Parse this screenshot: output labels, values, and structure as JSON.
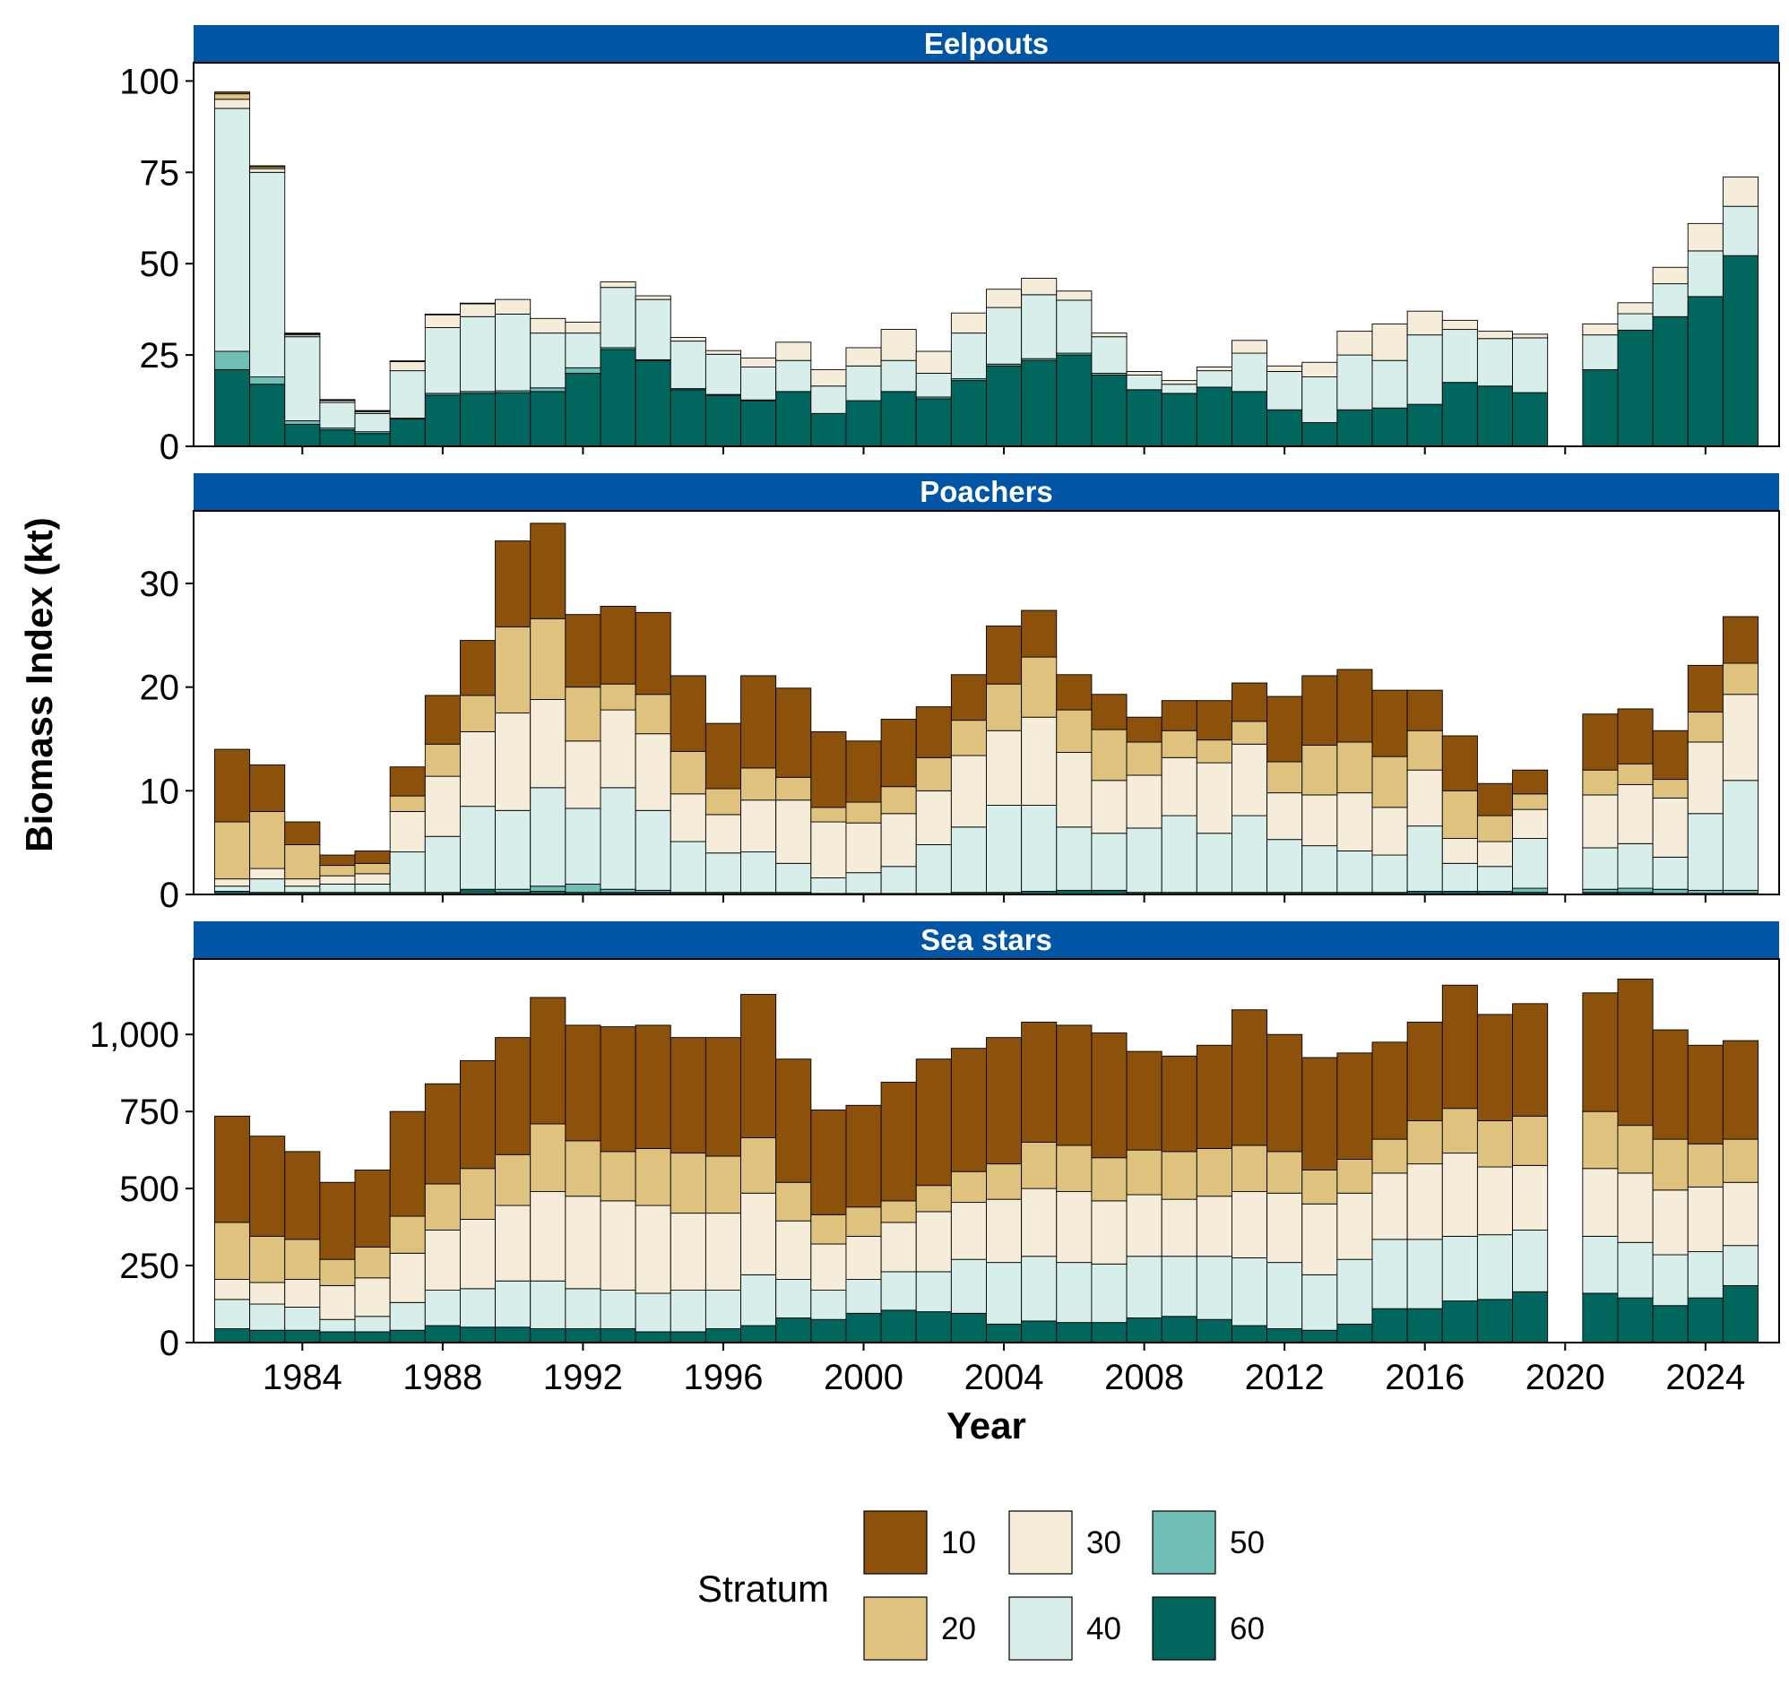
{
  "chart_data": {
    "type": "bar",
    "stacked": true,
    "xlabel": "Year",
    "ylabel": "Biomass Index (kt)",
    "x_ticks": [
      1984,
      1988,
      1992,
      1996,
      2000,
      2004,
      2008,
      2012,
      2016,
      2020,
      2024
    ],
    "years": [
      1982,
      1983,
      1984,
      1985,
      1986,
      1987,
      1988,
      1989,
      1990,
      1991,
      1992,
      1993,
      1994,
      1995,
      1996,
      1997,
      1998,
      1999,
      2000,
      2001,
      2002,
      2003,
      2004,
      2005,
      2006,
      2007,
      2008,
      2009,
      2010,
      2011,
      2012,
      2013,
      2014,
      2015,
      2016,
      2017,
      2018,
      2019,
      2020,
      2021,
      2022,
      2023,
      2024,
      2025
    ],
    "strata": [
      "10",
      "20",
      "30",
      "40",
      "50",
      "60"
    ],
    "colors": {
      "10": "#8c510a",
      "20": "#dfc27d",
      "30": "#f5ecd9",
      "40": "#d8eeeb",
      "50": "#6fbfb7",
      "60": "#01665e"
    },
    "legend": {
      "title": "Stratum",
      "position": "bottom"
    },
    "strip_color": "#0055a5",
    "panels": [
      {
        "name": "Eelpouts",
        "ylim": [
          0,
          105
        ],
        "yticks": [
          0,
          25,
          50,
          75,
          100
        ],
        "ytick_labels": [
          "0",
          "25",
          "50",
          "75",
          "100"
        ],
        "stacks": [
          [
            0.5,
            1.5,
            2.5,
            66.5,
            5,
            21
          ],
          [
            0.3,
            0.5,
            1,
            56,
            2,
            17
          ],
          [
            0.2,
            0.3,
            0.5,
            23,
            1,
            6
          ],
          [
            0.1,
            0.2,
            0.5,
            7,
            0.5,
            4.5
          ],
          [
            0.1,
            0.2,
            0.5,
            5,
            0.5,
            3.5
          ],
          [
            0,
            0.2,
            2.5,
            13,
            0.2,
            7.5
          ],
          [
            0,
            0.2,
            3.5,
            18,
            0.5,
            14
          ],
          [
            0,
            0.2,
            3.5,
            20.5,
            0.5,
            14.5
          ],
          [
            0,
            0,
            4,
            21,
            0.5,
            14.7
          ],
          [
            0,
            0,
            4,
            15,
            1,
            15
          ],
          [
            0,
            0,
            3,
            9.5,
            1.5,
            20
          ],
          [
            0,
            0,
            1.5,
            16.5,
            0.5,
            26.5
          ],
          [
            0,
            0,
            1,
            16.5,
            0.2,
            23.5
          ],
          [
            0,
            0,
            1,
            13,
            0.3,
            15.5
          ],
          [
            0,
            0,
            1,
            11,
            0.2,
            14
          ],
          [
            0,
            0,
            2.5,
            9,
            0.2,
            12.5
          ],
          [
            0,
            0,
            5,
            8.5,
            0,
            15
          ],
          [
            0,
            0,
            4.5,
            7.5,
            0,
            9
          ],
          [
            0,
            0,
            5,
            9.5,
            0,
            12.5
          ],
          [
            0,
            0,
            8.5,
            8.5,
            0,
            15
          ],
          [
            0,
            0,
            6,
            6.5,
            0.5,
            13
          ],
          [
            0,
            0,
            5.5,
            12.5,
            0.5,
            18
          ],
          [
            0,
            0,
            5,
            15.5,
            0.5,
            22
          ],
          [
            0,
            0,
            4.5,
            17.5,
            0.5,
            23.5
          ],
          [
            0,
            0,
            2.5,
            14.5,
            0.5,
            25
          ],
          [
            0,
            0,
            1,
            10,
            0.5,
            19.5
          ],
          [
            0,
            0,
            1,
            4,
            0,
            15.5
          ],
          [
            0,
            0,
            1,
            2.5,
            0,
            14.5
          ],
          [
            0,
            0,
            1,
            4.5,
            0,
            16.2
          ],
          [
            0,
            0,
            3.5,
            10.5,
            0,
            15
          ],
          [
            0,
            0,
            1.5,
            10.5,
            0,
            10
          ],
          [
            0,
            0,
            4,
            12.5,
            0,
            6.5
          ],
          [
            0,
            0,
            6.5,
            15,
            0,
            10
          ],
          [
            0,
            0,
            10,
            13,
            0,
            10.5
          ],
          [
            0,
            0,
            6.5,
            19,
            0,
            11.5
          ],
          [
            0,
            0,
            2.5,
            14.5,
            0,
            17.5
          ],
          [
            0,
            0,
            2,
            13,
            0,
            16.5
          ],
          [
            0,
            0,
            1,
            15,
            0,
            14.7
          ],
          [
            0,
            0,
            0,
            0,
            0,
            0
          ],
          [
            0,
            0,
            3,
            9.5,
            0,
            21
          ],
          [
            0,
            0,
            3,
            4.5,
            0,
            31.8
          ],
          [
            0,
            0,
            4.5,
            9,
            0,
            35.5
          ],
          [
            0,
            0,
            7.5,
            12.5,
            0,
            41
          ],
          [
            0,
            0,
            8,
            13.5,
            0,
            52.2
          ]
        ]
      },
      {
        "name": "Poachers",
        "ylim": [
          0,
          37
        ],
        "yticks": [
          0,
          10,
          20,
          30
        ],
        "ytick_labels": [
          "0",
          "10",
          "20",
          "30"
        ],
        "stacks": [
          [
            7,
            5.5,
            0.7,
            0.5,
            0,
            0.3
          ],
          [
            4.5,
            5.5,
            1,
            1.3,
            0,
            0.2
          ],
          [
            2.2,
            3.3,
            0.7,
            0.6,
            0,
            0.2
          ],
          [
            1,
            1,
            0.8,
            0.8,
            0,
            0.2
          ],
          [
            1.2,
            1,
            1,
            0.8,
            0,
            0.2
          ],
          [
            2.8,
            1.5,
            3.9,
            3.9,
            0,
            0.2
          ],
          [
            4.7,
            3.1,
            5.8,
            5.4,
            0,
            0.2
          ],
          [
            5.3,
            3.5,
            7.2,
            8,
            0,
            0.5
          ],
          [
            8.3,
            8.3,
            9.4,
            7.6,
            0.3,
            0.2
          ],
          [
            9.2,
            7.8,
            8.5,
            9.5,
            0.5,
            0.3
          ],
          [
            7,
            5.2,
            6.5,
            7.3,
            0.8,
            0.2
          ],
          [
            7.5,
            2.5,
            7.5,
            9.8,
            0.3,
            0.2
          ],
          [
            7.9,
            3.8,
            7.4,
            7.7,
            0.2,
            0.2
          ],
          [
            7.3,
            4.1,
            4.6,
            4.9,
            0,
            0.2
          ],
          [
            6.3,
            2.5,
            3.7,
            3.8,
            0,
            0.2
          ],
          [
            8.9,
            3.1,
            5,
            3.9,
            0,
            0.2
          ],
          [
            8.6,
            2.2,
            6.1,
            2.8,
            0,
            0.2
          ],
          [
            7.3,
            1.4,
            5.4,
            1.5,
            0,
            0.1
          ],
          [
            5.9,
            2,
            4.8,
            2,
            0,
            0.1
          ],
          [
            6.5,
            2.6,
            5.1,
            2.6,
            0,
            0.1
          ],
          [
            4.9,
            3.2,
            5.2,
            4.7,
            0,
            0.1
          ],
          [
            4.4,
            3.4,
            6.9,
            6.3,
            0,
            0.2
          ],
          [
            5.6,
            4.5,
            7.2,
            8.4,
            0,
            0.2
          ],
          [
            4.5,
            5.8,
            8.5,
            8.3,
            0,
            0.3
          ],
          [
            3.4,
            4.1,
            7.2,
            6.1,
            0,
            0.4
          ],
          [
            3.4,
            4.9,
            5.1,
            5.5,
            0,
            0.4
          ],
          [
            2.4,
            3.2,
            5.1,
            6.2,
            0,
            0.2
          ],
          [
            2.9,
            2.6,
            5.6,
            7.4,
            0,
            0.2
          ],
          [
            3.8,
            2.2,
            6.8,
            5.7,
            0,
            0.2
          ],
          [
            3.7,
            2.2,
            6.9,
            7.4,
            0,
            0.2
          ],
          [
            6.3,
            3,
            4.5,
            5.1,
            0,
            0.2
          ],
          [
            6.7,
            4.8,
            4.9,
            4.5,
            0,
            0.2
          ],
          [
            7,
            4.9,
            5.6,
            4,
            0,
            0.2
          ],
          [
            6.4,
            4.9,
            4.6,
            3.6,
            0,
            0.2
          ],
          [
            3.9,
            3.8,
            5.4,
            6.3,
            0,
            0.3
          ],
          [
            5.3,
            4.6,
            2.4,
            2.7,
            0,
            0.3
          ],
          [
            3.1,
            2.5,
            2.4,
            2.4,
            0,
            0.3
          ],
          [
            2.3,
            1.5,
            2.8,
            4.8,
            0.4,
            0.2
          ],
          [
            0,
            0,
            0,
            0,
            0,
            0
          ],
          [
            5.4,
            2.4,
            5.1,
            4,
            0.3,
            0.2
          ],
          [
            5.3,
            2,
            5.7,
            4.3,
            0.4,
            0.2
          ],
          [
            4.7,
            1.8,
            5.7,
            3.1,
            0.4,
            0.1
          ],
          [
            4.5,
            2.9,
            6.9,
            7.4,
            0.3,
            0.1
          ],
          [
            4.5,
            3,
            8.3,
            10.6,
            0.3,
            0.1
          ]
        ]
      },
      {
        "name": "Sea stars",
        "ylim": [
          0,
          1245
        ],
        "yticks": [
          0,
          250,
          500,
          750,
          1000
        ],
        "ytick_labels": [
          "0",
          "250",
          "500",
          "750",
          "1,000"
        ],
        "stacks": [
          [
            345,
            185,
            65,
            95,
            0,
            45
          ],
          [
            325,
            150,
            70,
            85,
            0,
            40
          ],
          [
            285,
            130,
            90,
            75,
            0,
            40
          ],
          [
            250,
            85,
            110,
            40,
            0,
            35
          ],
          [
            250,
            100,
            125,
            50,
            0,
            35
          ],
          [
            340,
            120,
            160,
            90,
            0,
            40
          ],
          [
            325,
            150,
            195,
            115,
            0,
            55
          ],
          [
            350,
            165,
            225,
            125,
            0,
            50
          ],
          [
            380,
            165,
            245,
            150,
            0,
            50
          ],
          [
            410,
            220,
            290,
            155,
            0,
            45
          ],
          [
            375,
            180,
            300,
            130,
            0,
            45
          ],
          [
            405,
            160,
            290,
            125,
            0,
            45
          ],
          [
            400,
            185,
            285,
            125,
            0,
            35
          ],
          [
            375,
            195,
            250,
            135,
            0,
            35
          ],
          [
            385,
            185,
            250,
            125,
            0,
            45
          ],
          [
            465,
            180,
            265,
            165,
            0,
            55
          ],
          [
            400,
            125,
            190,
            125,
            0,
            80
          ],
          [
            340,
            95,
            150,
            95,
            0,
            75
          ],
          [
            330,
            95,
            140,
            110,
            0,
            95
          ],
          [
            385,
            70,
            160,
            125,
            0,
            105
          ],
          [
            410,
            85,
            195,
            130,
            0,
            100
          ],
          [
            400,
            100,
            185,
            175,
            0,
            95
          ],
          [
            410,
            115,
            205,
            200,
            0,
            60
          ],
          [
            390,
            150,
            220,
            210,
            0,
            70
          ],
          [
            390,
            150,
            230,
            195,
            0,
            65
          ],
          [
            405,
            140,
            205,
            190,
            0,
            65
          ],
          [
            320,
            145,
            200,
            200,
            0,
            80
          ],
          [
            310,
            155,
            185,
            195,
            0,
            85
          ],
          [
            335,
            155,
            195,
            205,
            0,
            75
          ],
          [
            440,
            150,
            215,
            220,
            0,
            55
          ],
          [
            380,
            135,
            225,
            215,
            0,
            45
          ],
          [
            365,
            110,
            230,
            180,
            0,
            40
          ],
          [
            345,
            110,
            215,
            210,
            0,
            60
          ],
          [
            315,
            110,
            215,
            225,
            0,
            110
          ],
          [
            320,
            140,
            245,
            225,
            0,
            110
          ],
          [
            400,
            145,
            270,
            210,
            0,
            135
          ],
          [
            345,
            150,
            220,
            210,
            0,
            140
          ],
          [
            365,
            160,
            210,
            200,
            0,
            165
          ],
          [
            0,
            0,
            0,
            0,
            0,
            0
          ],
          [
            385,
            185,
            220,
            185,
            0,
            160
          ],
          [
            475,
            155,
            225,
            180,
            0,
            145
          ],
          [
            355,
            165,
            210,
            165,
            0,
            120
          ],
          [
            320,
            140,
            210,
            150,
            0,
            145
          ],
          [
            320,
            140,
            205,
            130,
            0,
            185
          ]
        ]
      }
    ]
  }
}
